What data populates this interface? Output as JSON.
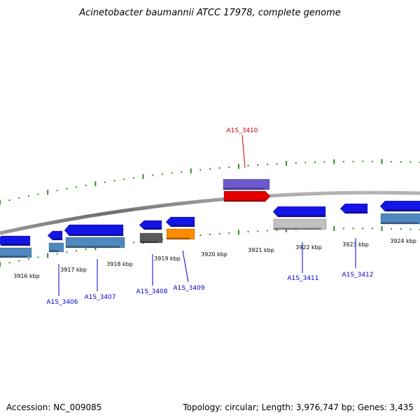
{
  "title": "Acinetobacter baumannii ATCC 17978, complete genome",
  "footer": {
    "accession": "Accession: NC_009085",
    "summary": "Topology: circular; Length: 3,976,747 bp; Genes: 3,435"
  },
  "colors": {
    "backbone": "#8a8a8a",
    "tick": "#2e8b22",
    "gene_blue": "#1414e6",
    "gene_steel": "#4f88bf",
    "gene_dark": "#5a5a5a",
    "gene_orange": "#ff8c00",
    "gene_purple": "#6a5acd",
    "gene_red": "#e60000",
    "gene_silver": "#c0c0c0",
    "label_blue": "#0000cc",
    "label_red": "#cc0000"
  },
  "axis": {
    "unit": "kbp",
    "tick_labels": [
      "3916 kbp",
      "3917 kbp",
      "3918 kbp",
      "3919 kbp",
      "3920 kbp",
      "3921 kbp",
      "3922 kbp",
      "3923 kbp",
      "3924 kbp"
    ]
  },
  "gene_labels": [
    "A1S_3406",
    "A1S_3407",
    "A1S_3408",
    "A1S_3409",
    "A1S_3410",
    "A1S_3411",
    "A1S_3412"
  ]
}
